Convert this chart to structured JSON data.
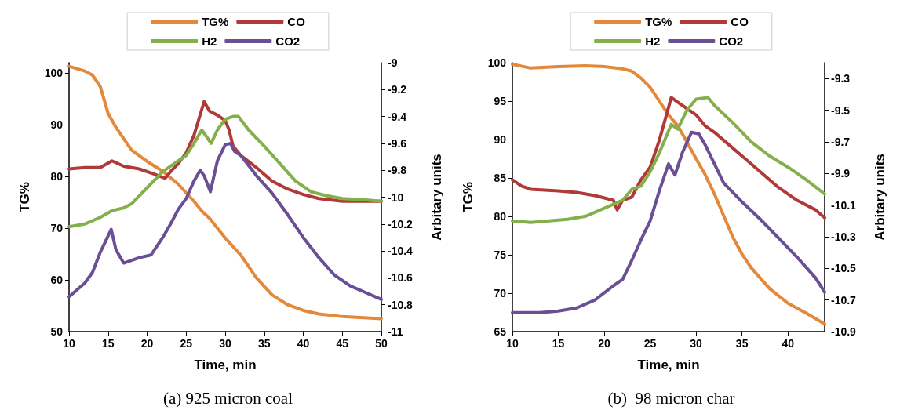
{
  "chart_data": [
    {
      "type": "line",
      "title": "(a) 925 micron coal",
      "xlabel": "Time, min",
      "ylabel": "TG%",
      "y2label": "Arbitary units",
      "legend": "top",
      "line_style": "solid",
      "xlim": [
        10,
        50
      ],
      "xticks": [
        10,
        15,
        20,
        25,
        30,
        35,
        40,
        45,
        50
      ],
      "ylim": [
        50,
        102
      ],
      "yticks": [
        50,
        60,
        70,
        80,
        90,
        100
      ],
      "y2lim": [
        -11,
        -9
      ],
      "y2ticks": [
        -11,
        -10.8,
        -10.6,
        -10.4,
        -10.2,
        -10,
        -9.8,
        -9.6,
        -9.4,
        -9.2,
        -9
      ],
      "series": [
        {
          "name": "TG%",
          "color": "#e4883a",
          "x": [
            10,
            12,
            13,
            14,
            15,
            16,
            17,
            18,
            20,
            22,
            24,
            26,
            27,
            28,
            30,
            32,
            34,
            36,
            38,
            40,
            42,
            45,
            50
          ],
          "values": [
            101.3,
            100.4,
            99.6,
            97.4,
            92.2,
            89.5,
            87.3,
            85.1,
            82.9,
            81,
            78.5,
            75.2,
            73.3,
            71.9,
            68.1,
            64.8,
            60.4,
            57.1,
            55.2,
            54.1,
            53.4,
            52.9,
            52.5
          ]
        },
        {
          "name": "CO",
          "color": "#b03a37",
          "axis": "y2",
          "x": [
            10,
            12,
            14,
            15.5,
            17,
            19,
            21,
            22.3,
            23,
            24,
            25,
            26,
            27.3,
            28,
            29,
            30,
            30.5,
            31,
            32,
            34,
            36,
            38,
            40,
            42,
            45,
            50
          ],
          "values": [
            -9.79,
            -9.78,
            -9.78,
            -9.73,
            -9.77,
            -9.79,
            -9.83,
            -9.86,
            -9.81,
            -9.75,
            -9.67,
            -9.54,
            -9.29,
            -9.36,
            -9.39,
            -9.43,
            -9.5,
            -9.62,
            -9.69,
            -9.78,
            -9.88,
            -9.94,
            -9.98,
            -10.01,
            -10.03,
            -10.03
          ]
        },
        {
          "name": "H2",
          "color": "#84b04b",
          "axis": "y2",
          "x": [
            10,
            12,
            14,
            15.5,
            17,
            18,
            20,
            22,
            24,
            25,
            26,
            27,
            28.2,
            29,
            30,
            31,
            31.7,
            33,
            35,
            37,
            39,
            41,
            43,
            45,
            48,
            50
          ],
          "values": [
            -10.22,
            -10.2,
            -10.15,
            -10.1,
            -10.08,
            -10.05,
            -9.93,
            -9.81,
            -9.73,
            -9.69,
            -9.6,
            -9.5,
            -9.6,
            -9.5,
            -9.42,
            -9.4,
            -9.4,
            -9.5,
            -9.62,
            -9.75,
            -9.88,
            -9.96,
            -9.99,
            -10.01,
            -10.02,
            -10.03
          ]
        },
        {
          "name": "CO2",
          "color": "#6b4f95",
          "axis": "y2",
          "x": [
            10,
            12,
            13,
            14,
            15.4,
            16,
            17,
            19,
            20.5,
            22,
            23,
            24,
            25,
            26,
            26.8,
            27.3,
            28.1,
            29,
            30,
            30.7,
            31.2,
            32,
            34,
            36,
            38,
            40,
            42,
            44,
            46,
            48,
            50
          ],
          "values": [
            -10.74,
            -10.64,
            -10.56,
            -10.41,
            -10.24,
            -10.39,
            -10.49,
            -10.45,
            -10.43,
            -10.3,
            -10.2,
            -10.09,
            -10.01,
            -9.88,
            -9.8,
            -9.84,
            -9.96,
            -9.73,
            -9.61,
            -9.6,
            -9.66,
            -9.69,
            -9.84,
            -9.97,
            -10.13,
            -10.3,
            -10.45,
            -10.58,
            -10.66,
            -10.71,
            -10.76
          ]
        }
      ]
    },
    {
      "type": "line",
      "title": "(b)  98 micron char",
      "xlabel": "Time, min",
      "ylabel": "TG%",
      "y2label": "Arbitary units",
      "legend": "top",
      "line_style": "solid",
      "xlim": [
        10,
        44
      ],
      "xticks": [
        10,
        15,
        20,
        25,
        30,
        35,
        40
      ],
      "ylim": [
        65,
        100
      ],
      "yticks": [
        65,
        70,
        75,
        80,
        85,
        90,
        95,
        100
      ],
      "y2lim": [
        -10.9,
        -9.2
      ],
      "y2ticks": [
        -10.9,
        -10.7,
        -10.5,
        -10.3,
        -10.1,
        -9.9,
        -9.7,
        -9.5,
        -9.3
      ],
      "series": [
        {
          "name": "TG%",
          "color": "#e4883a",
          "x": [
            10,
            12,
            15,
            18,
            20,
            22,
            23,
            24,
            25,
            26,
            27,
            28,
            29,
            30,
            31,
            32,
            33,
            34,
            35,
            36,
            38,
            40,
            42,
            44
          ],
          "values": [
            99.8,
            99.3,
            99.5,
            99.6,
            99.5,
            99.2,
            98.9,
            98,
            96.8,
            95,
            93.2,
            91.8,
            89.7,
            87.5,
            85.4,
            82.9,
            80.1,
            77.3,
            75.1,
            73.3,
            70.6,
            68.7,
            67.4,
            66
          ]
        },
        {
          "name": "CO",
          "color": "#b03a37",
          "axis": "y2",
          "x": [
            10,
            11,
            12,
            15,
            17,
            19,
            21,
            21.4,
            22,
            23,
            24,
            25,
            26,
            27.3,
            28,
            29,
            30,
            31,
            32,
            33,
            35,
            37,
            39,
            41,
            43,
            44
          ],
          "values": [
            -9.94,
            -9.98,
            -10,
            -10.01,
            -10.02,
            -10.04,
            -10.07,
            -10.13,
            -10.07,
            -10.05,
            -9.94,
            -9.86,
            -9.69,
            -9.42,
            -9.45,
            -9.49,
            -9.53,
            -9.6,
            -9.64,
            -9.69,
            -9.79,
            -9.89,
            -9.99,
            -10.07,
            -10.13,
            -10.18
          ]
        },
        {
          "name": "H2",
          "color": "#84b04b",
          "axis": "y2",
          "x": [
            10,
            12,
            14,
            16,
            18,
            20,
            22,
            23,
            24,
            25,
            26,
            27.3,
            28,
            29,
            30,
            31.3,
            32,
            34,
            36,
            38,
            40,
            42,
            44
          ],
          "values": [
            -10.2,
            -10.21,
            -10.2,
            -10.19,
            -10.17,
            -10.12,
            -10.07,
            -10,
            -9.98,
            -9.89,
            -9.77,
            -9.59,
            -9.62,
            -9.5,
            -9.43,
            -9.42,
            -9.47,
            -9.58,
            -9.7,
            -9.79,
            -9.86,
            -9.94,
            -10.03
          ]
        },
        {
          "name": "CO2",
          "color": "#6b4f95",
          "axis": "y2",
          "x": [
            10,
            13,
            15,
            17,
            19,
            21,
            22,
            23,
            24,
            25,
            26,
            27,
            27.7,
            28.5,
            29.5,
            30.3,
            31,
            32,
            33,
            35,
            37,
            39,
            41,
            43,
            44
          ],
          "values": [
            -10.78,
            -10.78,
            -10.77,
            -10.75,
            -10.7,
            -10.61,
            -10.57,
            -10.45,
            -10.32,
            -10.2,
            -10.01,
            -9.84,
            -9.91,
            -9.77,
            -9.64,
            -9.65,
            -9.72,
            -9.84,
            -9.96,
            -10.08,
            -10.19,
            -10.31,
            -10.43,
            -10.56,
            -10.65
          ]
        }
      ]
    }
  ]
}
